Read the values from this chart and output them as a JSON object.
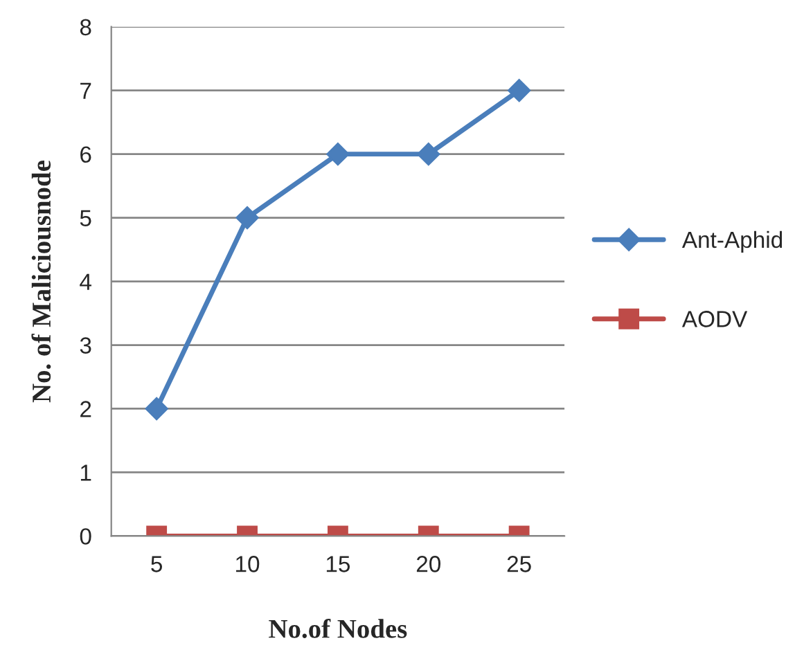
{
  "chart_data": {
    "type": "line",
    "xlabel": "No.of Nodes",
    "ylabel": "No. of Maliciousnode",
    "categories": [
      "5",
      "10",
      "15",
      "20",
      "25"
    ],
    "series": [
      {
        "name": "Ant-Aphid",
        "color": "#4a7ebb",
        "marker": "diamond",
        "values": [
          2,
          5,
          6,
          6,
          7
        ]
      },
      {
        "name": "AODV",
        "color": "#be4b48",
        "marker": "square",
        "values": [
          0,
          0,
          0,
          0,
          0
        ]
      }
    ],
    "ylim": [
      0,
      8
    ],
    "yticks": [
      0,
      1,
      2,
      3,
      4,
      5,
      6,
      7,
      8
    ],
    "grid": "y",
    "legend": "right",
    "line_style": "solid"
  }
}
